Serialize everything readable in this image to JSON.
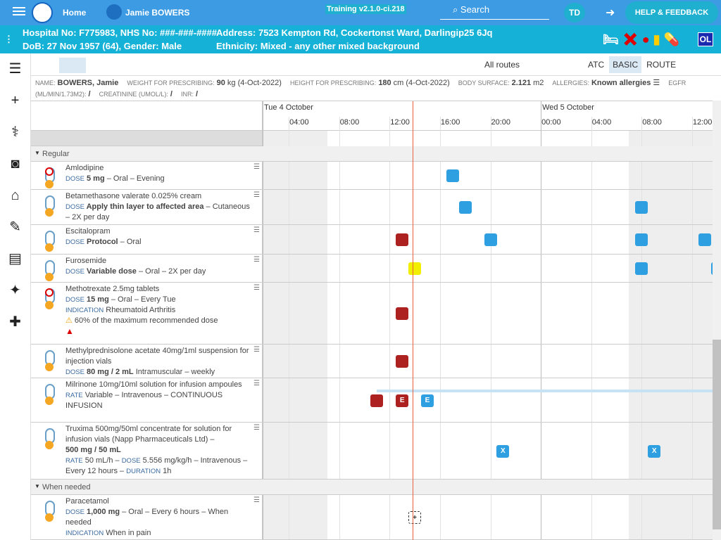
{
  "header": {
    "home": "Home",
    "patient": "Jamie BOWERS",
    "version": "Training v2.1.0-ci.218",
    "search": "Search",
    "initials": "TD",
    "help": "HELP & FEEDBACK"
  },
  "banner": {
    "ids": "Hospital No: F775983, NHS No: ###-###-####",
    "address": "Address: 7523 Kempton Rd, Cockertonst Ward, Darlingip25 6Jq",
    "dob": "DoB: 27 Nov 1957 (64), Gender: Male",
    "ethnicity": "Ethnicity: Mixed - any other mixed background",
    "badge": "OL"
  },
  "toolbar": {
    "routes": "All routes",
    "views": [
      "ATC",
      "BASIC",
      "ROUTE"
    ],
    "active_view": "BASIC"
  },
  "info": [
    {
      "label": "NAME:",
      "value": "BOWERS, Jamie"
    },
    {
      "label": "WEIGHT FOR PRESCRIBING:",
      "value": "90",
      "note": "kg (4-Oct-2022)"
    },
    {
      "label": "HEIGHT FOR PRESCRIBING:",
      "value": "180",
      "note": "cm (4-Oct-2022)"
    },
    {
      "label": "BODY SURFACE:",
      "value": "2.121",
      "note": "m2"
    },
    {
      "label": "ALLERGIES:",
      "value": "Known allergies",
      "note": "☰"
    },
    {
      "label": "EGFR (ML/MIN/1.73M2):",
      "value": "/"
    },
    {
      "label": "CREATININE (UMOL/L):",
      "value": "/"
    },
    {
      "label": "INR:",
      "value": "/"
    }
  ],
  "timeline": {
    "days": [
      {
        "value": 0,
        "label": "Tue 4 October"
      },
      {
        "value": 24,
        "label": "Wed 5 October"
      }
    ],
    "hours": [
      {
        "value": 4,
        "label": "04:00"
      },
      {
        "value": 8,
        "label": "08:00"
      },
      {
        "value": 12,
        "label": "12:00"
      },
      {
        "value": 16,
        "label": "16:00"
      },
      {
        "value": 20,
        "label": "20:00"
      },
      {
        "value": 24,
        "label": "00:00"
      },
      {
        "value": 28,
        "label": "04:00"
      },
      {
        "value": 32,
        "label": "08:00"
      },
      {
        "value": 36,
        "label": "12:00"
      }
    ],
    "now": 13.83
  },
  "sections": [
    {
      "title": "Regular",
      "meds": [
        {
          "lines": [
            [
              {
                "s": "t",
                "t": "Amlodipine"
              }
            ],
            [
              {
                "s": "lab",
                "t": "DOSE"
              },
              {
                "s": "b",
                "t": " 5 mg"
              },
              {
                "s": "t",
                "t": " – Oral – Evening"
              }
            ]
          ],
          "alert": true,
          "doses": [
            {
              "h": 17,
              "kind": "given"
            }
          ]
        },
        {
          "lines": [
            [
              {
                "s": "t",
                "t": "Betamethasone valerate 0.025% cream"
              }
            ],
            [
              {
                "s": "lab",
                "t": "DOSE"
              },
              {
                "s": "b",
                "t": " Apply thin layer to affected area"
              },
              {
                "s": "t",
                "t": " – Cutaneous – 2X per day"
              }
            ]
          ],
          "doses": [
            {
              "h": 18,
              "kind": "given"
            },
            {
              "h": 32,
              "kind": "given"
            }
          ]
        },
        {
          "lines": [
            [
              {
                "s": "t",
                "t": "Escitalopram"
              }
            ],
            [
              {
                "s": "lab",
                "t": "DOSE"
              },
              {
                "s": "b",
                "t": " Protocol"
              },
              {
                "s": "t",
                "t": " – Oral"
              }
            ]
          ],
          "doses": [
            {
              "h": 13,
              "kind": "missed"
            },
            {
              "h": 20,
              "kind": "given"
            },
            {
              "h": 32,
              "kind": "given"
            },
            {
              "h": 37,
              "kind": "given"
            }
          ]
        },
        {
          "lines": [
            [
              {
                "s": "t",
                "t": "Furosemide"
              }
            ],
            [
              {
                "s": "lab",
                "t": "DOSE"
              },
              {
                "s": "b",
                "t": " Variable dose"
              },
              {
                "s": "t",
                "t": " – Oral – 2X per day"
              }
            ]
          ],
          "doses": [
            {
              "h": 14,
              "kind": "due"
            },
            {
              "h": 32,
              "kind": "given"
            },
            {
              "h": 38,
              "kind": "given"
            }
          ]
        },
        {
          "lines": [
            [
              {
                "s": "t",
                "t": "Methotrexate 2.5mg tablets"
              }
            ],
            [
              {
                "s": "lab",
                "t": "DOSE"
              },
              {
                "s": "b",
                "t": " 15 mg"
              },
              {
                "s": "t",
                "t": " – Oral – Every Tue"
              }
            ],
            [
              {
                "s": "lab",
                "t": "INDICATION"
              },
              {
                "s": "t",
                "t": " Rheumatoid Arthritis"
              }
            ],
            [
              {
                "s": "warn",
                "t": "60% of the maximum recommended dose"
              }
            ]
          ],
          "alert": true,
          "danger": true,
          "doses": [
            {
              "h": 13,
              "kind": "missed"
            }
          ]
        },
        {
          "lines": [
            [
              {
                "s": "t",
                "t": "Methylprednisolone acetate 40mg/1ml suspension for injection vials"
              }
            ],
            [
              {
                "s": "lab",
                "t": "DOSE"
              },
              {
                "s": "b",
                "t": " 80 mg / 2 mL"
              },
              {
                "s": "t",
                "t": " Intramuscular – weekly"
              }
            ]
          ],
          "doses": [
            {
              "h": 13,
              "kind": "missed"
            }
          ]
        },
        {
          "lines": [
            [
              {
                "s": "t",
                "t": "Milrinone 10mg/10ml solution for infusion ampoules"
              }
            ],
            [
              {
                "s": "lab",
                "t": "RATE"
              },
              {
                "s": "t",
                "t": " Variable – Intravenous – CONTINUOUS INFUSION"
              }
            ]
          ],
          "infusion": 11,
          "doses": [
            {
              "h": 11,
              "kind": "missed"
            },
            {
              "h": 13,
              "kind": "missed",
              "label": "E"
            },
            {
              "h": 15,
              "kind": "given",
              "label": "E"
            }
          ]
        },
        {
          "lines": [
            [
              {
                "s": "t",
                "t": "Truxima 500mg/50ml concentrate for solution for infusion vials (Napp Pharmaceuticals Ltd) –"
              }
            ],
            [
              {
                "s": "b",
                "t": "500 mg / 50 mL"
              }
            ],
            [
              {
                "s": "lab",
                "t": "RATE"
              },
              {
                "s": "t",
                "t": " 50 mL/h – "
              },
              {
                "s": "lab",
                "t": "DOSE"
              },
              {
                "s": "t",
                "t": " 5.556 mg/kg/h – Intravenous – Every 12 hours – "
              },
              {
                "s": "lab",
                "t": "DURATION"
              },
              {
                "s": "t",
                "t": " 1h"
              }
            ]
          ],
          "doses": [
            {
              "h": 21,
              "kind": "given",
              "label": "X"
            },
            {
              "h": 33,
              "kind": "given",
              "label": "X"
            }
          ]
        }
      ]
    },
    {
      "title": "When needed",
      "meds": [
        {
          "lines": [
            [
              {
                "s": "t",
                "t": "Paracetamol"
              }
            ],
            [
              {
                "s": "lab",
                "t": "DOSE"
              },
              {
                "s": "b",
                "t": " 1,000 mg"
              },
              {
                "s": "t",
                "t": " – Oral – Every 6 hours – When needed"
              }
            ],
            [
              {
                "s": "lab",
                "t": "INDICATION"
              },
              {
                "s": "t",
                "t": " When in pain"
              }
            ]
          ],
          "doses": [
            {
              "h": 14,
              "kind": "planned",
              "label": "+"
            }
          ]
        }
      ]
    }
  ]
}
